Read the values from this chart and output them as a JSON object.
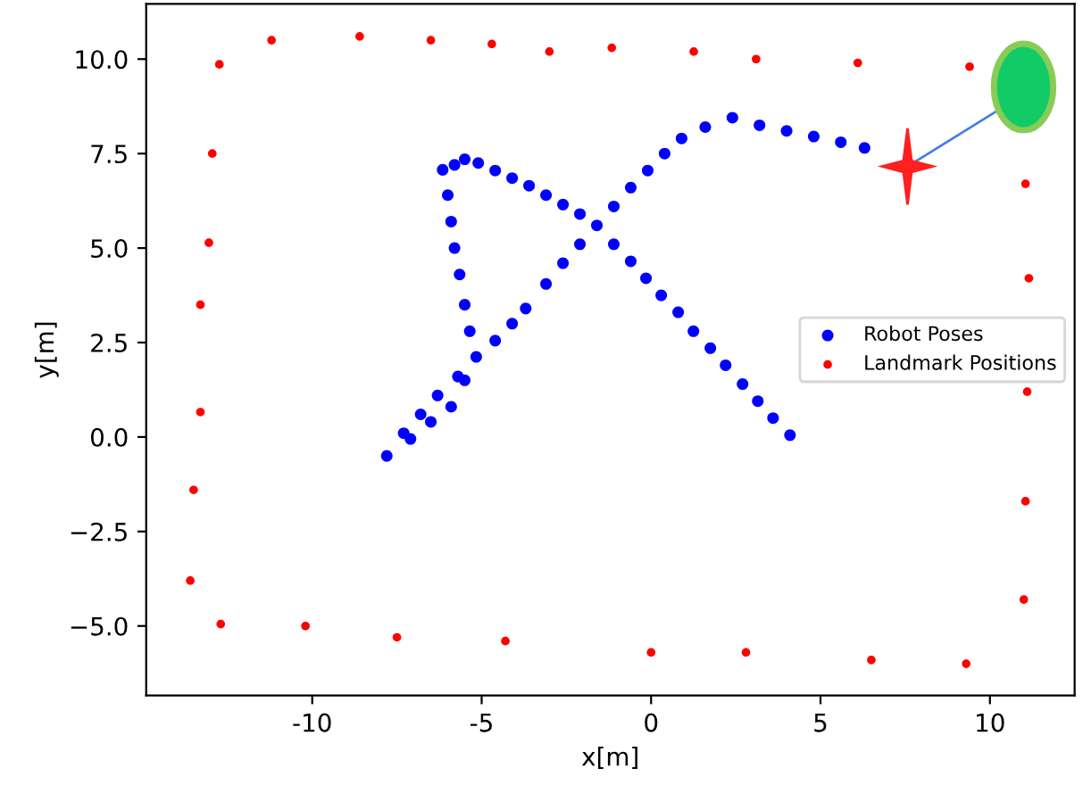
{
  "chart_data": {
    "type": "scatter",
    "xlabel": "x[m]",
    "ylabel": "y[m]",
    "xlim": [
      -14.9,
      12.5
    ],
    "ylim": [
      -6.84,
      11.46
    ],
    "xticks": [
      -10,
      -5,
      0,
      5,
      10
    ],
    "yticks": [
      {
        "value": -5.0,
        "label": "−5.0"
      },
      {
        "value": -2.5,
        "label": "−2.5"
      },
      {
        "value": 0.0,
        "label": "0.0"
      },
      {
        "value": 2.5,
        "label": "2.5"
      },
      {
        "value": 5.0,
        "label": "5.0"
      },
      {
        "value": 7.5,
        "label": "7.5"
      },
      {
        "value": 10.0,
        "label": "10.0"
      }
    ],
    "grid": false,
    "legend": "center right",
    "marker": "circle",
    "series": [
      {
        "name": "Robot Poses",
        "color": "#0000ff",
        "x": [
          4.1,
          3.6,
          3.15,
          2.7,
          2.2,
          1.75,
          1.25,
          0.8,
          0.3,
          -0.15,
          -0.6,
          -1.1,
          -1.6,
          -2.1,
          -2.6,
          -3.1,
          -3.6,
          -4.1,
          -4.6,
          -5.1,
          -5.5,
          -5.8,
          -6.15,
          -6.0,
          -5.9,
          -5.8,
          -5.65,
          -5.5,
          -5.35,
          -5.16,
          -5.5,
          -5.9,
          -6.5,
          -7.1,
          -7.8,
          -7.3,
          -6.8,
          -6.3,
          -5.7,
          -4.6,
          -4.1,
          -3.7,
          -3.1,
          -2.6,
          -2.1,
          -1.1,
          -0.6,
          -0.1,
          0.4,
          0.9,
          1.6,
          2.4,
          3.2,
          4.0,
          4.8,
          5.6,
          6.3
        ],
        "values": [
          0.05,
          0.5,
          0.95,
          1.4,
          1.9,
          2.35,
          2.8,
          3.3,
          3.75,
          4.2,
          4.65,
          5.1,
          5.6,
          5.9,
          6.15,
          6.4,
          6.65,
          6.85,
          7.05,
          7.25,
          7.35,
          7.2,
          7.07,
          6.4,
          5.7,
          5.0,
          4.3,
          3.5,
          2.8,
          2.12,
          1.5,
          0.8,
          0.4,
          -0.05,
          -0.5,
          0.1,
          0.6,
          1.1,
          1.6,
          2.55,
          3.0,
          3.4,
          4.05,
          4.6,
          5.1,
          6.1,
          6.6,
          7.05,
          7.5,
          7.9,
          8.2,
          8.45,
          8.25,
          8.1,
          7.95,
          7.8,
          7.65
        ]
      },
      {
        "name": "Landmark Positions",
        "color": "#ff0000",
        "x": [
          -12.74,
          -11.2,
          -8.6,
          -6.5,
          -4.7,
          -3.0,
          -1.16,
          1.26,
          3.1,
          6.1,
          9.4,
          11.05,
          11.15,
          11.1,
          11.05,
          11.0,
          9.3,
          6.5,
          2.8,
          0.0,
          -4.3,
          -7.5,
          -10.2,
          -12.7,
          -13.6,
          -13.5,
          -13.3,
          -13.3,
          -13.05,
          -12.95
        ],
        "values": [
          9.86,
          10.5,
          10.6,
          10.5,
          10.4,
          10.2,
          10.3,
          10.2,
          10.0,
          9.9,
          9.8,
          6.7,
          4.2,
          1.2,
          -1.7,
          -4.3,
          -6.0,
          -5.9,
          -5.7,
          -5.7,
          -5.4,
          -5.3,
          -5.0,
          -4.95,
          -3.8,
          -1.4,
          0.66,
          3.5,
          5.14,
          7.5
        ]
      }
    ]
  }
}
